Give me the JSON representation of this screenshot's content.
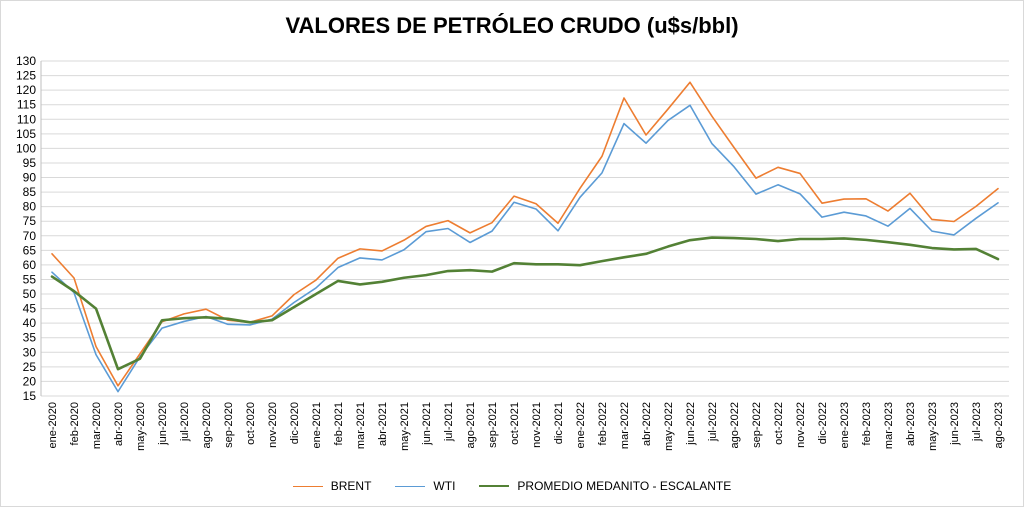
{
  "chart_data": {
    "type": "line",
    "title": "VALORES DE PETRÓLEO CRUDO (u$s/bbl)",
    "ylim": [
      15,
      130
    ],
    "yticks": [
      15,
      20,
      25,
      30,
      35,
      40,
      45,
      50,
      55,
      60,
      65,
      70,
      75,
      80,
      85,
      90,
      95,
      100,
      105,
      110,
      115,
      120,
      125,
      130
    ],
    "grid": true,
    "legend_position": "bottom",
    "categories": [
      "ene-2020",
      "feb-2020",
      "mar-2020",
      "abr-2020",
      "may-2020",
      "jun-2020",
      "jul-2020",
      "ago-2020",
      "sep-2020",
      "oct-2020",
      "nov-2020",
      "dic-2020",
      "ene-2021",
      "feb-2021",
      "mar-2021",
      "abr-2021",
      "may-2021",
      "jun-2021",
      "jul-2021",
      "ago-2021",
      "sep-2021",
      "oct-2021",
      "nov-2021",
      "dic-2021",
      "ene-2022",
      "feb-2022",
      "mar-2022",
      "abr-2022",
      "may-2022",
      "jun-2022",
      "jul-2022",
      "ago-2022",
      "sep-2022",
      "oct-2022",
      "nov-2022",
      "dic-2022",
      "ene-2023",
      "feb-2023",
      "mar-2023",
      "abr-2023",
      "may-2023",
      "jun-2023",
      "jul-2023",
      "ago-2023"
    ],
    "series": [
      {
        "name": "BRENT",
        "color": "#ed7d31",
        "width": 1.6,
        "values": [
          63.8,
          55.5,
          32,
          18.5,
          29.5,
          40.5,
          43.2,
          44.8,
          41,
          40.3,
          42.5,
          49.8,
          54.8,
          62.3,
          65.5,
          64.8,
          68.5,
          73.2,
          75.2,
          71,
          74.5,
          83.6,
          81,
          74.3,
          86.3,
          97.3,
          117.3,
          104.6,
          113.5,
          122.7,
          111,
          100.3,
          89.8,
          93.5,
          91.4,
          81.2,
          82.6,
          82.7,
          78.5,
          84.6,
          75.6,
          74.9,
          80.1,
          86.2
        ]
      },
      {
        "name": "WTI",
        "color": "#5b9bd5",
        "width": 1.6,
        "values": [
          57.5,
          50.5,
          29.2,
          16.5,
          28.5,
          38.3,
          40.6,
          42.3,
          39.6,
          39.4,
          41.4,
          47.1,
          52.1,
          59.1,
          62.4,
          61.7,
          65.2,
          71.4,
          72.5,
          67.7,
          71.6,
          81.5,
          79.2,
          71.7,
          83.2,
          91.6,
          108.5,
          101.8,
          109.6,
          114.8,
          101.6,
          93.7,
          84.3,
          87.5,
          84.4,
          76.4,
          78.1,
          76.8,
          73.3,
          79.4,
          71.6,
          70.3,
          76,
          81.3
        ]
      },
      {
        "name": "PROMEDIO MEDANITO - ESCALANTE",
        "color": "#538135",
        "width": 2.6,
        "values": [
          56,
          51,
          45,
          24.2,
          27.8,
          41,
          41.7,
          42,
          41.5,
          40.3,
          41,
          45.5,
          50,
          54.5,
          53.3,
          54.2,
          55.6,
          56.5,
          57.9,
          58.2,
          57.7,
          60.6,
          60.2,
          60.2,
          59.9,
          61.3,
          62.6,
          63.8,
          66.3,
          68.5,
          69.4,
          69.2,
          68.9,
          68.2,
          68.9,
          68.9,
          69.1,
          68.6,
          67.8,
          66.9,
          65.8,
          65.3,
          65.5,
          62
        ]
      }
    ]
  }
}
